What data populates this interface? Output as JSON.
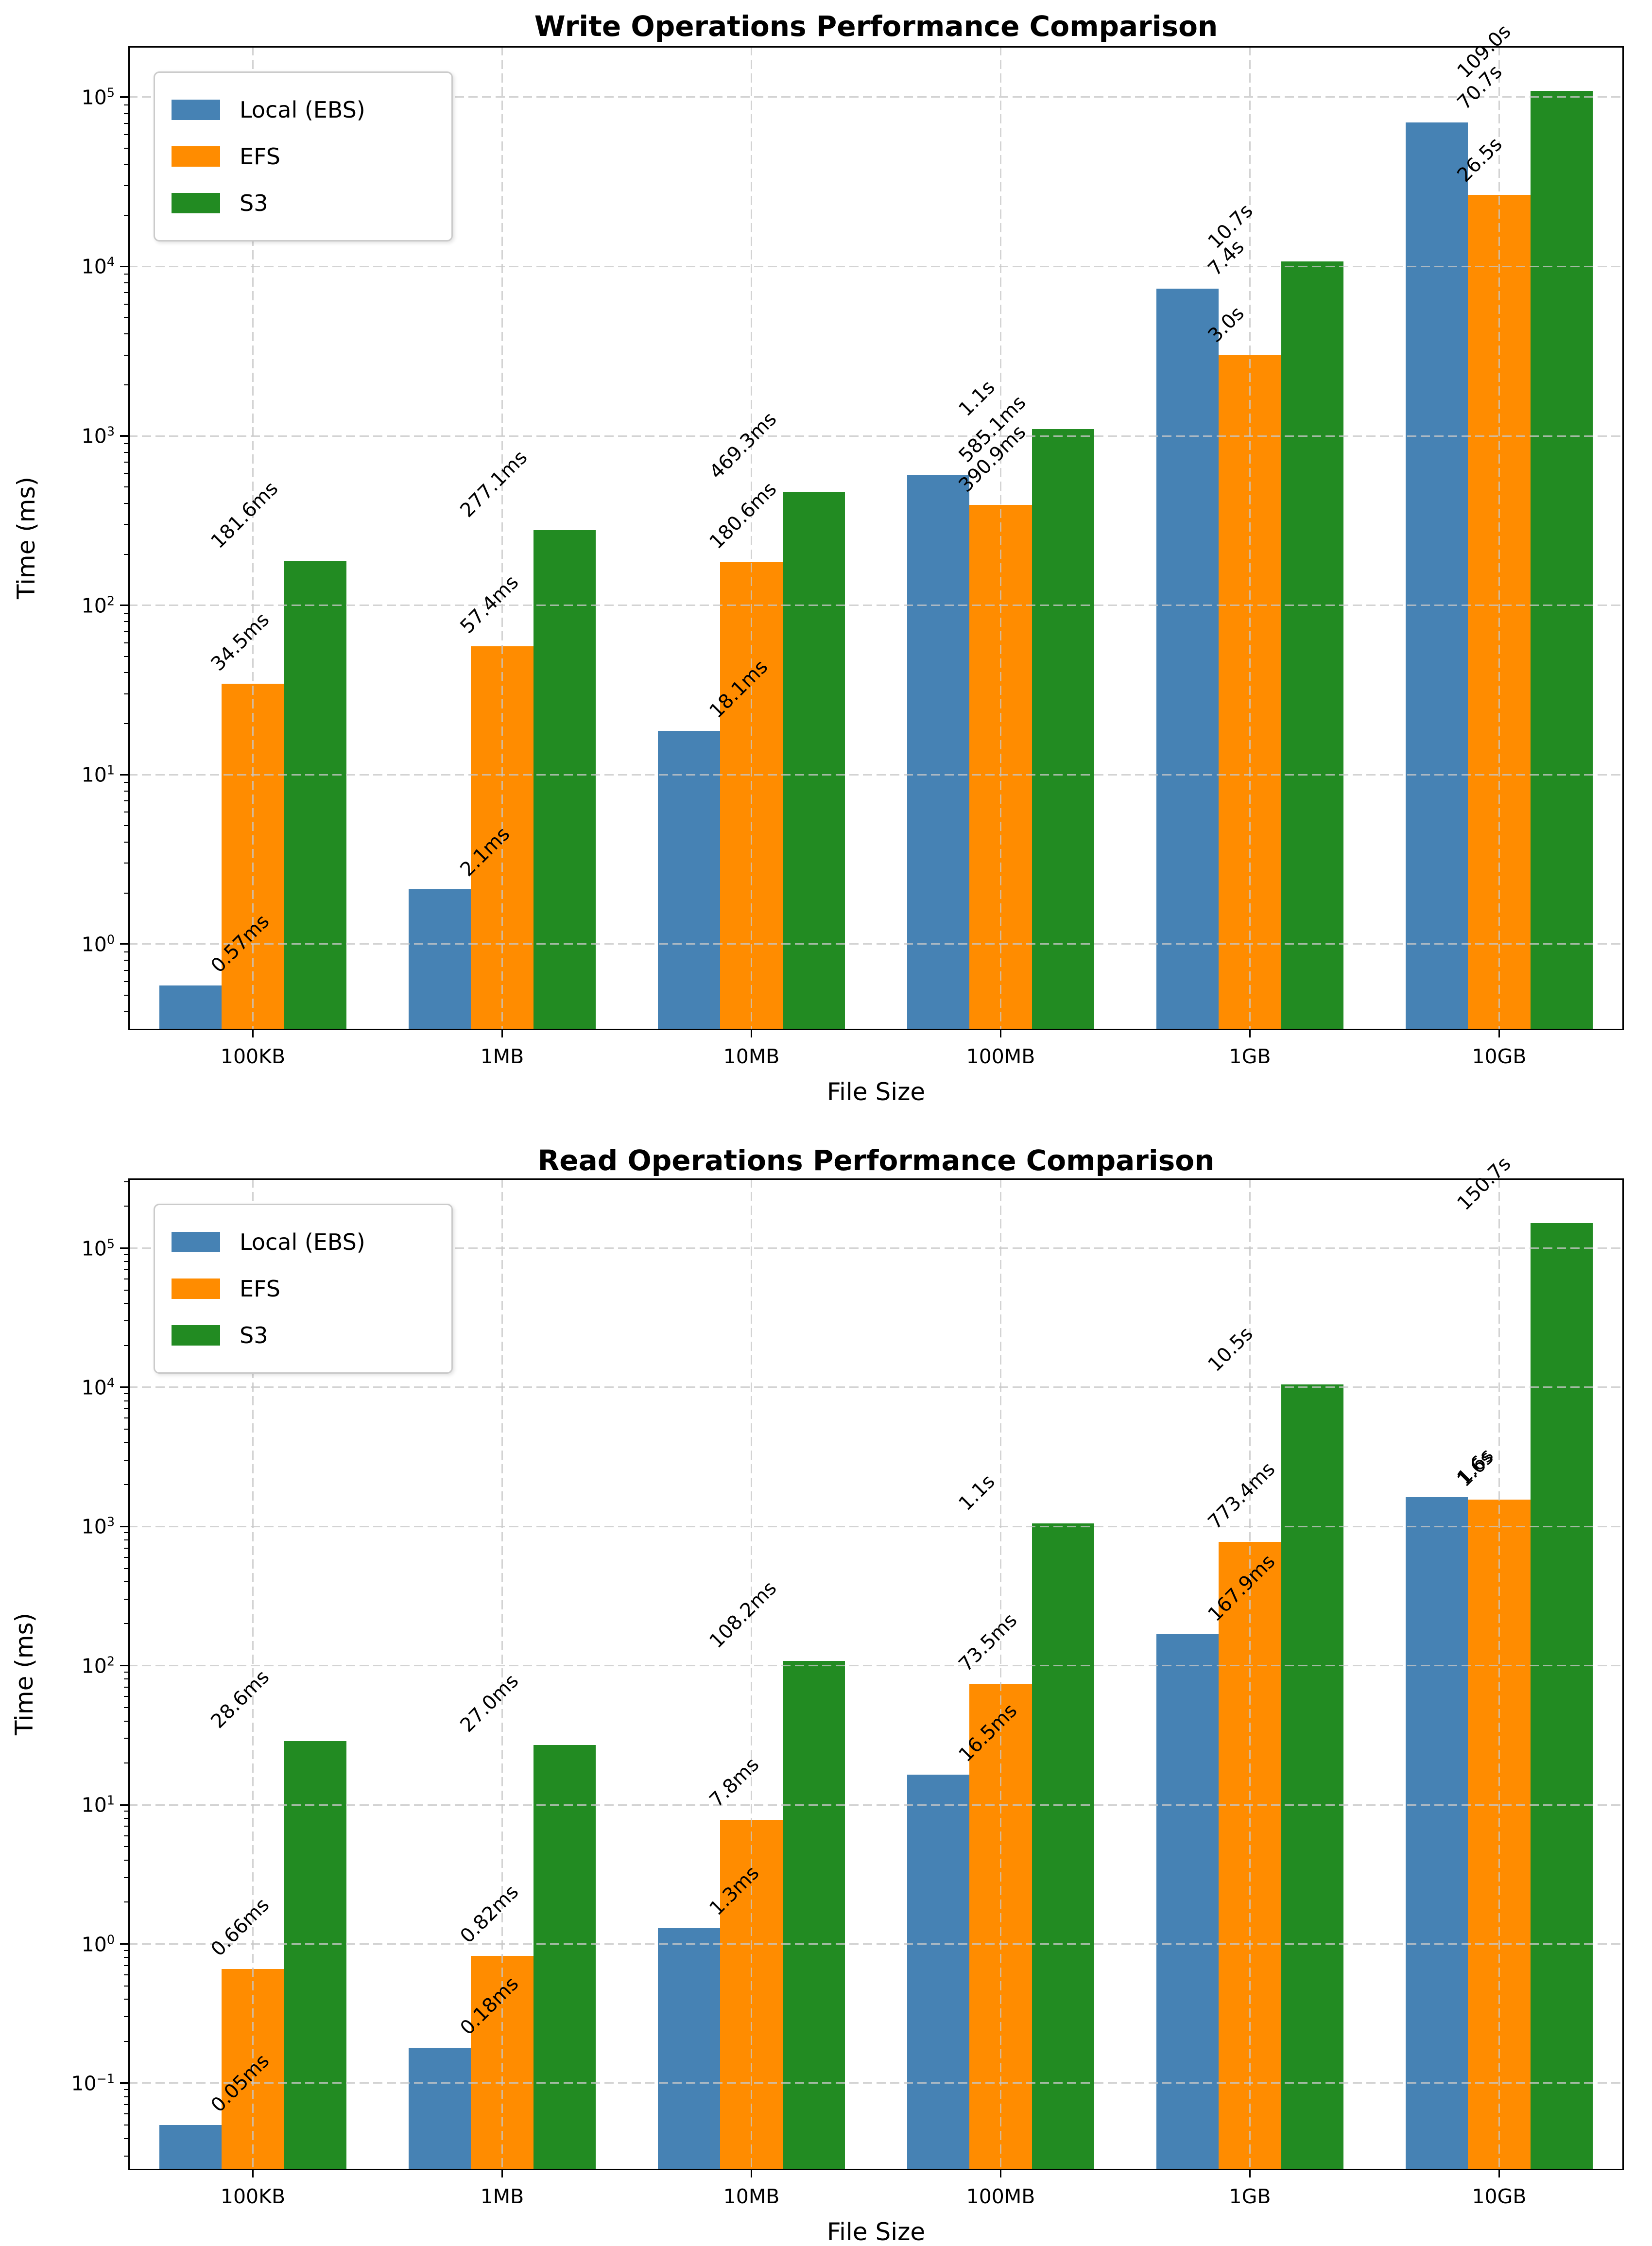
{
  "colors": {
    "local_ebs": "#4682B4",
    "efs": "#FF8C00",
    "s3": "#228B22",
    "grid": "#c7c7c7",
    "spine": "#000000",
    "background": "#ffffff"
  },
  "legend": {
    "position": "upper left",
    "items": [
      {
        "label": "Local (EBS)",
        "color": "#4682B4"
      },
      {
        "label": "EFS",
        "color": "#FF8C00"
      },
      {
        "label": "S3",
        "color": "#228B22"
      }
    ]
  },
  "chart_data": [
    {
      "type": "bar",
      "title": "Write Operations Performance Comparison",
      "xlabel": "File Size",
      "ylabel": "Time (ms)",
      "yscale": "log",
      "ylim_ms": [
        0.31,
        200000
      ],
      "ytick_exponents": [
        0,
        1,
        2,
        3,
        4,
        5
      ],
      "grid": {
        "linestyle": "dashed",
        "horizontal": true,
        "vertical": true
      },
      "legend_position": "upper left",
      "categories": [
        "100KB",
        "1MB",
        "10MB",
        "100MB",
        "1GB",
        "10GB"
      ],
      "series": [
        {
          "name": "Local (EBS)",
          "color": "#4682B4",
          "values_ms": [
            0.57,
            2.1,
            18.1,
            585.1,
            7400,
            70700
          ],
          "labels": [
            "0.57ms",
            "2.1ms",
            "18.1ms",
            "585.1ms",
            "7.4s",
            "70.7s"
          ]
        },
        {
          "name": "EFS",
          "color": "#FF8C00",
          "values_ms": [
            34.5,
            57.4,
            180.6,
            390.9,
            3000,
            26500
          ],
          "labels": [
            "34.5ms",
            "57.4ms",
            "180.6ms",
            "390.9ms",
            "3.0s",
            "26.5s"
          ]
        },
        {
          "name": "S3",
          "color": "#228B22",
          "values_ms": [
            181.6,
            277.1,
            469.3,
            1100,
            10700,
            109000
          ],
          "labels": [
            "181.6ms",
            "277.1ms",
            "469.3ms",
            "1.1s",
            "10.7s",
            "109.0s"
          ]
        }
      ]
    },
    {
      "type": "bar",
      "title": "Read Operations Performance Comparison",
      "xlabel": "File Size",
      "ylabel": "Time (ms)",
      "yscale": "log",
      "ylim_ms": [
        0.0237,
        317000
      ],
      "ytick_exponents": [
        -1,
        0,
        1,
        2,
        3,
        4,
        5
      ],
      "grid": {
        "linestyle": "dashed",
        "horizontal": true,
        "vertical": true
      },
      "legend_position": "upper left",
      "categories": [
        "100KB",
        "1MB",
        "10MB",
        "100MB",
        "1GB",
        "10GB"
      ],
      "series": [
        {
          "name": "Local (EBS)",
          "color": "#4682B4",
          "values_ms": [
            0.05,
            0.18,
            1.3,
            16.5,
            167.9,
            1620
          ],
          "labels": [
            "0.05ms",
            "0.18ms",
            "1.3ms",
            "16.5ms",
            "167.9ms",
            "1.6s"
          ]
        },
        {
          "name": "EFS",
          "color": "#FF8C00",
          "values_ms": [
            0.66,
            0.82,
            7.8,
            73.5,
            773.4,
            1560
          ],
          "labels": [
            "0.66ms",
            "0.82ms",
            "7.8ms",
            "73.5ms",
            "773.4ms",
            "1.6s"
          ]
        },
        {
          "name": "S3",
          "color": "#228B22",
          "values_ms": [
            28.6,
            27.0,
            108.2,
            1050,
            10500,
            150700
          ],
          "labels": [
            "28.6ms",
            "27.0ms",
            "108.2ms",
            "1.1s",
            "10.5s",
            "150.7s"
          ]
        }
      ]
    }
  ]
}
